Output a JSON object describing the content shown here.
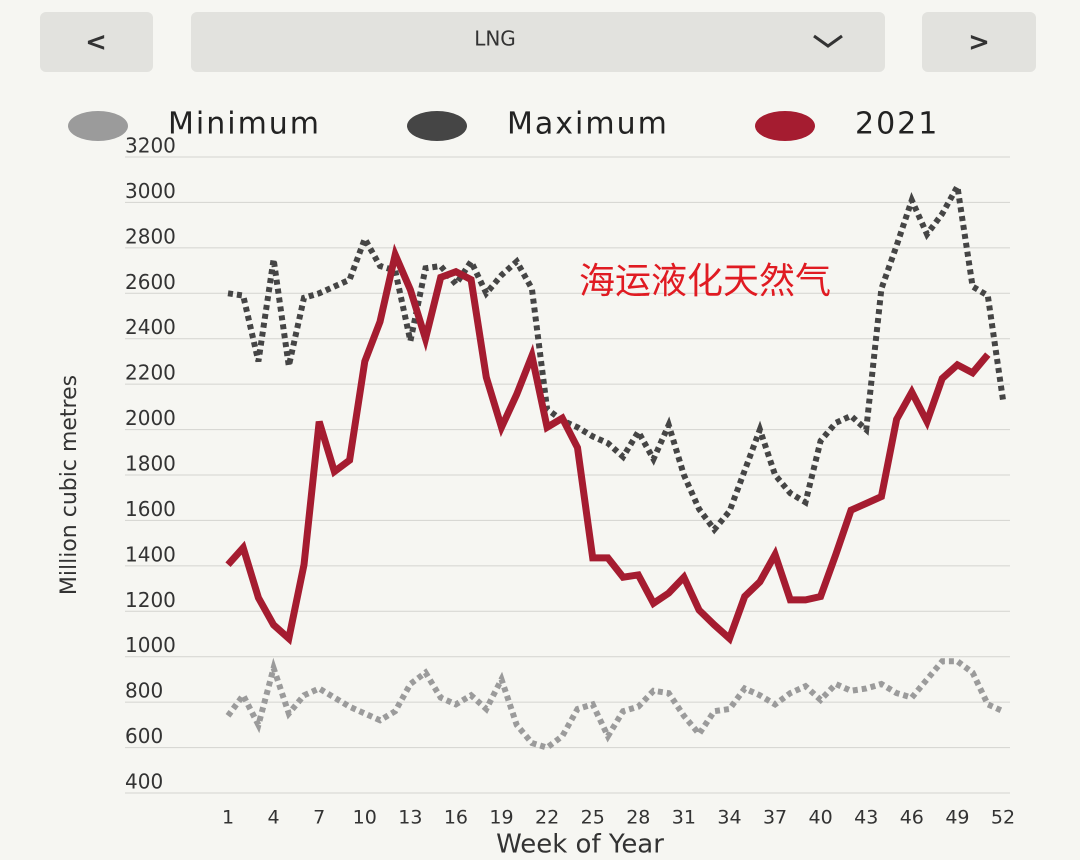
{
  "ui": {
    "prev_button": "<",
    "selector": "LNG",
    "next_button": ">"
  },
  "chart_data": {
    "type": "line",
    "y_label": "Million cubic metres",
    "x_label": "Week of Year",
    "annotation": "海运液化天然气",
    "legend": "top",
    "grid": true,
    "x": [
      1,
      2,
      3,
      4,
      5,
      6,
      7,
      8,
      9,
      10,
      11,
      12,
      13,
      14,
      15,
      16,
      17,
      18,
      19,
      20,
      21,
      22,
      23,
      24,
      25,
      26,
      27,
      28,
      29,
      30,
      31,
      32,
      33,
      34,
      35,
      36,
      37,
      38,
      39,
      40,
      41,
      42,
      43,
      44,
      45,
      46,
      47,
      48,
      49,
      50,
      51,
      52
    ],
    "xlim": [
      1,
      52
    ],
    "xticks": [
      1,
      4,
      7,
      10,
      13,
      16,
      19,
      22,
      25,
      28,
      31,
      34,
      37,
      40,
      43,
      46,
      49,
      52
    ],
    "ylim": [
      400,
      3200
    ],
    "yticks": [
      400,
      600,
      800,
      1000,
      1200,
      1400,
      1600,
      1800,
      2000,
      2200,
      2400,
      2600,
      2800,
      3000,
      3200
    ],
    "series": [
      {
        "name": "Minimum",
        "color": "#9b9b9b",
        "dashed": true,
        "values": [
          740,
          830,
          700,
          950,
          750,
          830,
          860,
          820,
          780,
          750,
          720,
          760,
          880,
          930,
          820,
          790,
          830,
          770,
          900,
          700,
          620,
          600,
          650,
          770,
          790,
          650,
          760,
          780,
          850,
          840,
          740,
          660,
          760,
          770,
          860,
          830,
          790,
          840,
          870,
          810,
          880,
          850,
          860,
          880,
          840,
          820,
          900,
          980,
          980,
          930,
          790,
          760
        ]
      },
      {
        "name": "Maximum",
        "color": "#454545",
        "dashed": true,
        "values": [
          2600,
          2590,
          2300,
          2750,
          2280,
          2580,
          2600,
          2630,
          2660,
          2840,
          2720,
          2700,
          2390,
          2710,
          2720,
          2640,
          2740,
          2600,
          2680,
          2740,
          2620,
          2090,
          2040,
          2010,
          1970,
          1940,
          1880,
          1990,
          1870,
          2020,
          1800,
          1650,
          1560,
          1640,
          1820,
          2000,
          1800,
          1720,
          1680,
          1950,
          2030,
          2060,
          2000,
          2620,
          2810,
          3010,
          2860,
          2950,
          3070,
          2630,
          2590,
          2130
        ]
      },
      {
        "name": "2021",
        "color": "#a51c30",
        "dashed": false,
        "values": [
          1405,
          1480,
          1260,
          1140,
          1080,
          1405,
          2035,
          1815,
          1865,
          2300,
          2475,
          2770,
          2615,
          2400,
          2670,
          2695,
          2660,
          2230,
          2010,
          2155,
          2325,
          2010,
          2050,
          1920,
          1435,
          1435,
          1350,
          1360,
          1235,
          1280,
          1350,
          1205,
          1140,
          1080,
          1265,
          1330,
          1450,
          1250,
          1250,
          1265,
          1450,
          1645,
          1675,
          1705,
          2045,
          2165,
          2035,
          2225,
          2285,
          2250,
          2330,
          null
        ]
      }
    ]
  }
}
